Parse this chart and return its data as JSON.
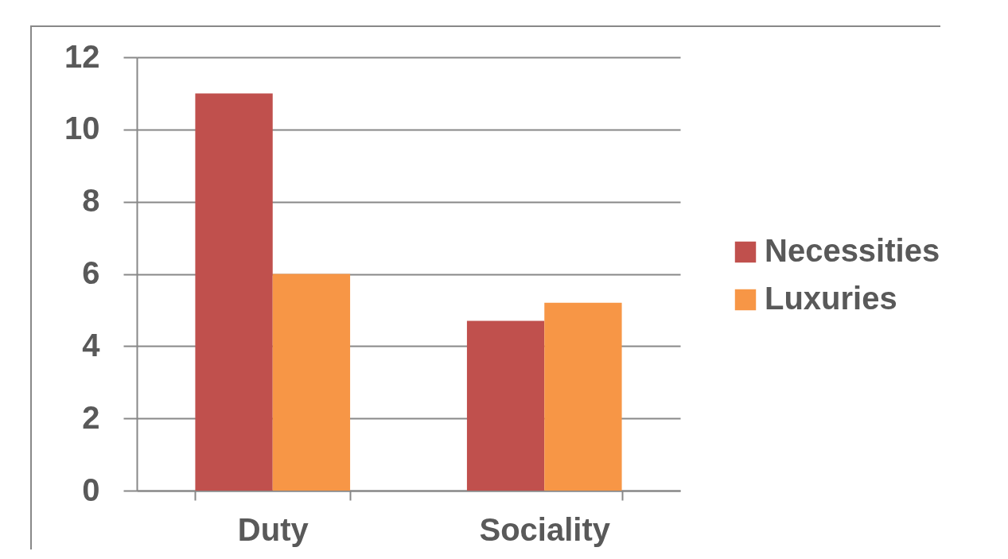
{
  "chart_data": {
    "type": "bar",
    "categories": [
      "Duty",
      "Sociality"
    ],
    "series": [
      {
        "name": "Necessities",
        "color": "#c0504d",
        "values": [
          11,
          4.7
        ]
      },
      {
        "name": "Luxuries",
        "color": "#f79646",
        "values": [
          6,
          5.2
        ]
      }
    ],
    "ylim": [
      0,
      12
    ],
    "yticks": [
      0,
      2,
      4,
      6,
      8,
      10,
      12
    ],
    "grid": "y",
    "legend": "right"
  }
}
